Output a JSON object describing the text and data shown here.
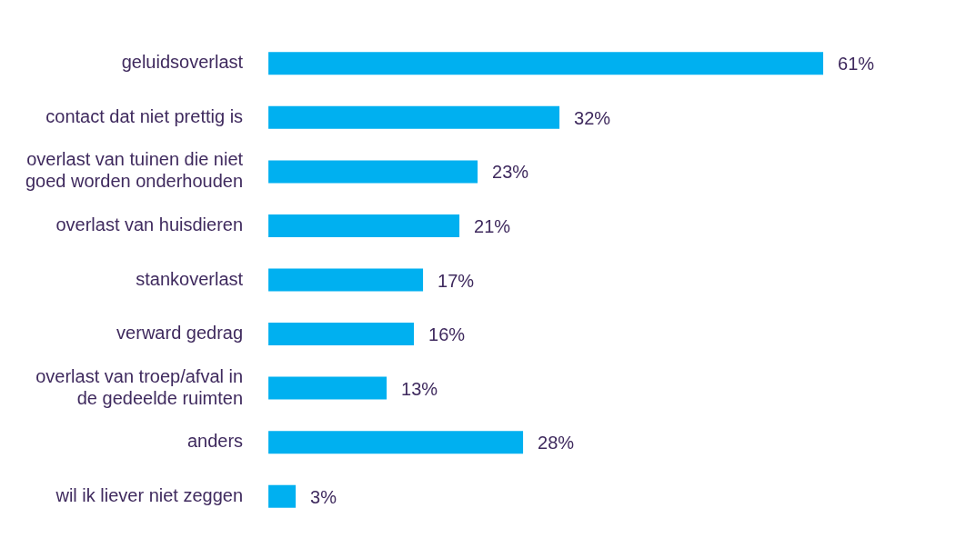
{
  "chart_data": {
    "type": "bar",
    "orientation": "horizontal",
    "categories": [
      "geluidsoverlast",
      "contact dat niet prettig is",
      "overlast van tuinen die niet goed worden onderhouden",
      "overlast van huisdieren",
      "stankoverlast",
      "verward gedrag",
      "overlast van troep/afval in de gedeelde ruimten",
      "anders",
      "wil ik liever niet zeggen"
    ],
    "values": [
      61,
      32,
      23,
      21,
      17,
      16,
      13,
      28,
      3
    ],
    "value_labels": [
      "61%",
      "32%",
      "23%",
      "21%",
      "17%",
      "16%",
      "13%",
      "28%",
      "3%"
    ],
    "color": "#00b0f0",
    "legend": false
  }
}
